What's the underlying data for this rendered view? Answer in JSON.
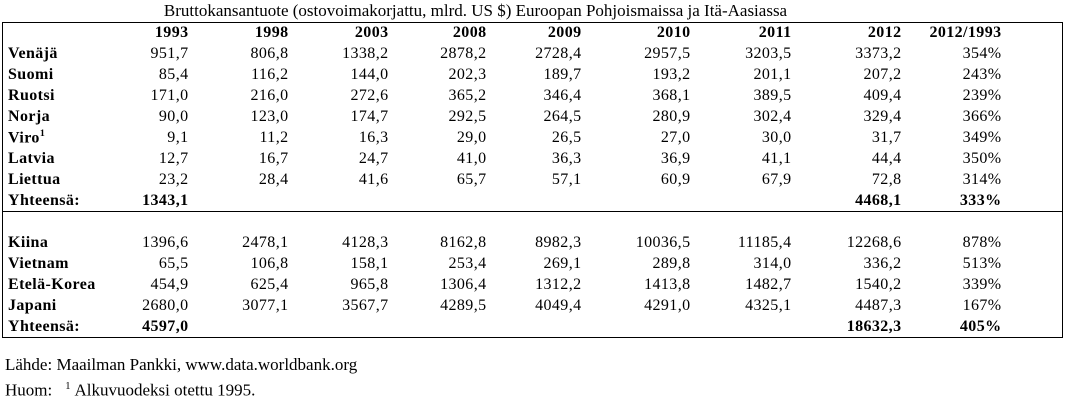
{
  "title": "Bruttokansantuote (ostovoimakorjattu, mlrd. US $) Euroopan Pohjoismaissa ja Itä-Aasiassa",
  "table": {
    "header": {
      "cols": [
        "1993",
        "1998",
        "2003",
        "2008",
        "2009",
        "2010",
        "2011",
        "2012",
        "2012/1993"
      ]
    },
    "sections": [
      {
        "name": "pohjoismaat",
        "rows": [
          {
            "label": "Venäjä",
            "sup": "",
            "total": false,
            "values": [
              "951,7",
              "806,8",
              "1338,2",
              "2878,2",
              "2728,4",
              "2957,5",
              "3203,5",
              "3373,2",
              "354%"
            ]
          },
          {
            "label": "Suomi",
            "sup": "",
            "total": false,
            "values": [
              "85,4",
              "116,2",
              "144,0",
              "202,3",
              "189,7",
              "193,2",
              "201,1",
              "207,2",
              "243%"
            ]
          },
          {
            "label": "Ruotsi",
            "sup": "",
            "total": false,
            "values": [
              "171,0",
              "216,0",
              "272,6",
              "365,2",
              "346,4",
              "368,1",
              "389,5",
              "409,4",
              "239%"
            ]
          },
          {
            "label": "Norja",
            "sup": "",
            "total": false,
            "values": [
              "90,0",
              "123,0",
              "174,7",
              "292,5",
              "264,5",
              "280,9",
              "302,4",
              "329,4",
              "366%"
            ]
          },
          {
            "label": "Viro",
            "sup": "1",
            "total": false,
            "values": [
              "9,1",
              "11,2",
              "16,3",
              "29,0",
              "26,5",
              "27,0",
              "30,0",
              "31,7",
              "349%"
            ]
          },
          {
            "label": "Latvia",
            "sup": "",
            "total": false,
            "values": [
              "12,7",
              "16,7",
              "24,7",
              "41,0",
              "36,3",
              "36,9",
              "41,1",
              "44,4",
              "350%"
            ]
          },
          {
            "label": "Liettua",
            "sup": "",
            "total": false,
            "values": [
              "23,2",
              "28,4",
              "41,6",
              "65,7",
              "57,1",
              "60,9",
              "67,9",
              "72,8",
              "314%"
            ]
          },
          {
            "label": "Yhteensä:",
            "sup": "",
            "total": true,
            "values": [
              "1343,1",
              "",
              "",
              "",
              "",
              "",
              "",
              "4468,1",
              "333%"
            ]
          }
        ]
      },
      {
        "name": "ita-aasia",
        "rows": [
          {
            "label": "Kiina",
            "sup": "",
            "total": false,
            "values": [
              "1396,6",
              "2478,1",
              "4128,3",
              "8162,8",
              "8982,3",
              "10036,5",
              "11185,4",
              "12268,6",
              "878%"
            ]
          },
          {
            "label": "Vietnam",
            "sup": "",
            "total": false,
            "values": [
              "65,5",
              "106,8",
              "158,1",
              "253,4",
              "269,1",
              "289,8",
              "314,0",
              "336,2",
              "513%"
            ]
          },
          {
            "label": "Etelä-Korea",
            "sup": "",
            "total": false,
            "values": [
              "454,9",
              "625,4",
              "965,8",
              "1306,4",
              "1312,2",
              "1413,8",
              "1482,7",
              "1540,2",
              "339%"
            ]
          },
          {
            "label": "Japani",
            "sup": "",
            "total": false,
            "values": [
              "2680,0",
              "3077,1",
              "3567,7",
              "4289,5",
              "4049,4",
              "4291,0",
              "4325,1",
              "4487,3",
              "167%"
            ]
          },
          {
            "label": "Yhteensä:",
            "sup": "",
            "total": true,
            "values": [
              "4597,0",
              "",
              "",
              "",
              "",
              "",
              "",
              "18632,3",
              "405%"
            ]
          }
        ]
      }
    ]
  },
  "footer": {
    "source_line": "Lähde: Maailman Pankki, www.data.worldbank.org",
    "note_prefix": "Huom:",
    "note_sup": "1",
    "note_text": "Alkuvuodeksi otettu 1995."
  }
}
